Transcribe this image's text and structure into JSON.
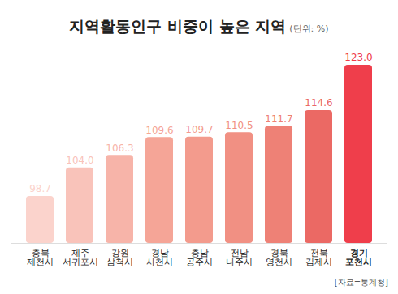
{
  "chart_data": {
    "type": "bar",
    "title": "지역활동인구 비중이 높은 지역",
    "subtitle": "(단위: %)",
    "source": "[자료=통계청]",
    "categories": [
      "충북\n제천시",
      "제주\n서귀포시",
      "강원\n삼척시",
      "경남\n사천시",
      "충남\n공주시",
      "전남\n나주시",
      "경북\n영천시",
      "전북\n김제시",
      "경기\n포천시"
    ],
    "values": [
      98.7,
      104.0,
      106.3,
      109.6,
      109.7,
      110.5,
      111.7,
      114.6,
      123.0
    ],
    "value_labels": [
      "98.7",
      "104.0",
      "106.3",
      "109.6",
      "109.7",
      "110.5",
      "111.7",
      "114.6",
      "123.0"
    ],
    "colors": [
      "#fbd3cc",
      "#f9c3ba",
      "#f7b4a9",
      "#f5a597",
      "#f39b8d",
      "#f19083",
      "#ee8176",
      "#eb6964",
      "#ef3e4b"
    ],
    "ylim": [
      90,
      123
    ],
    "data_labels": true,
    "tick_labels": "x",
    "grid": false
  }
}
